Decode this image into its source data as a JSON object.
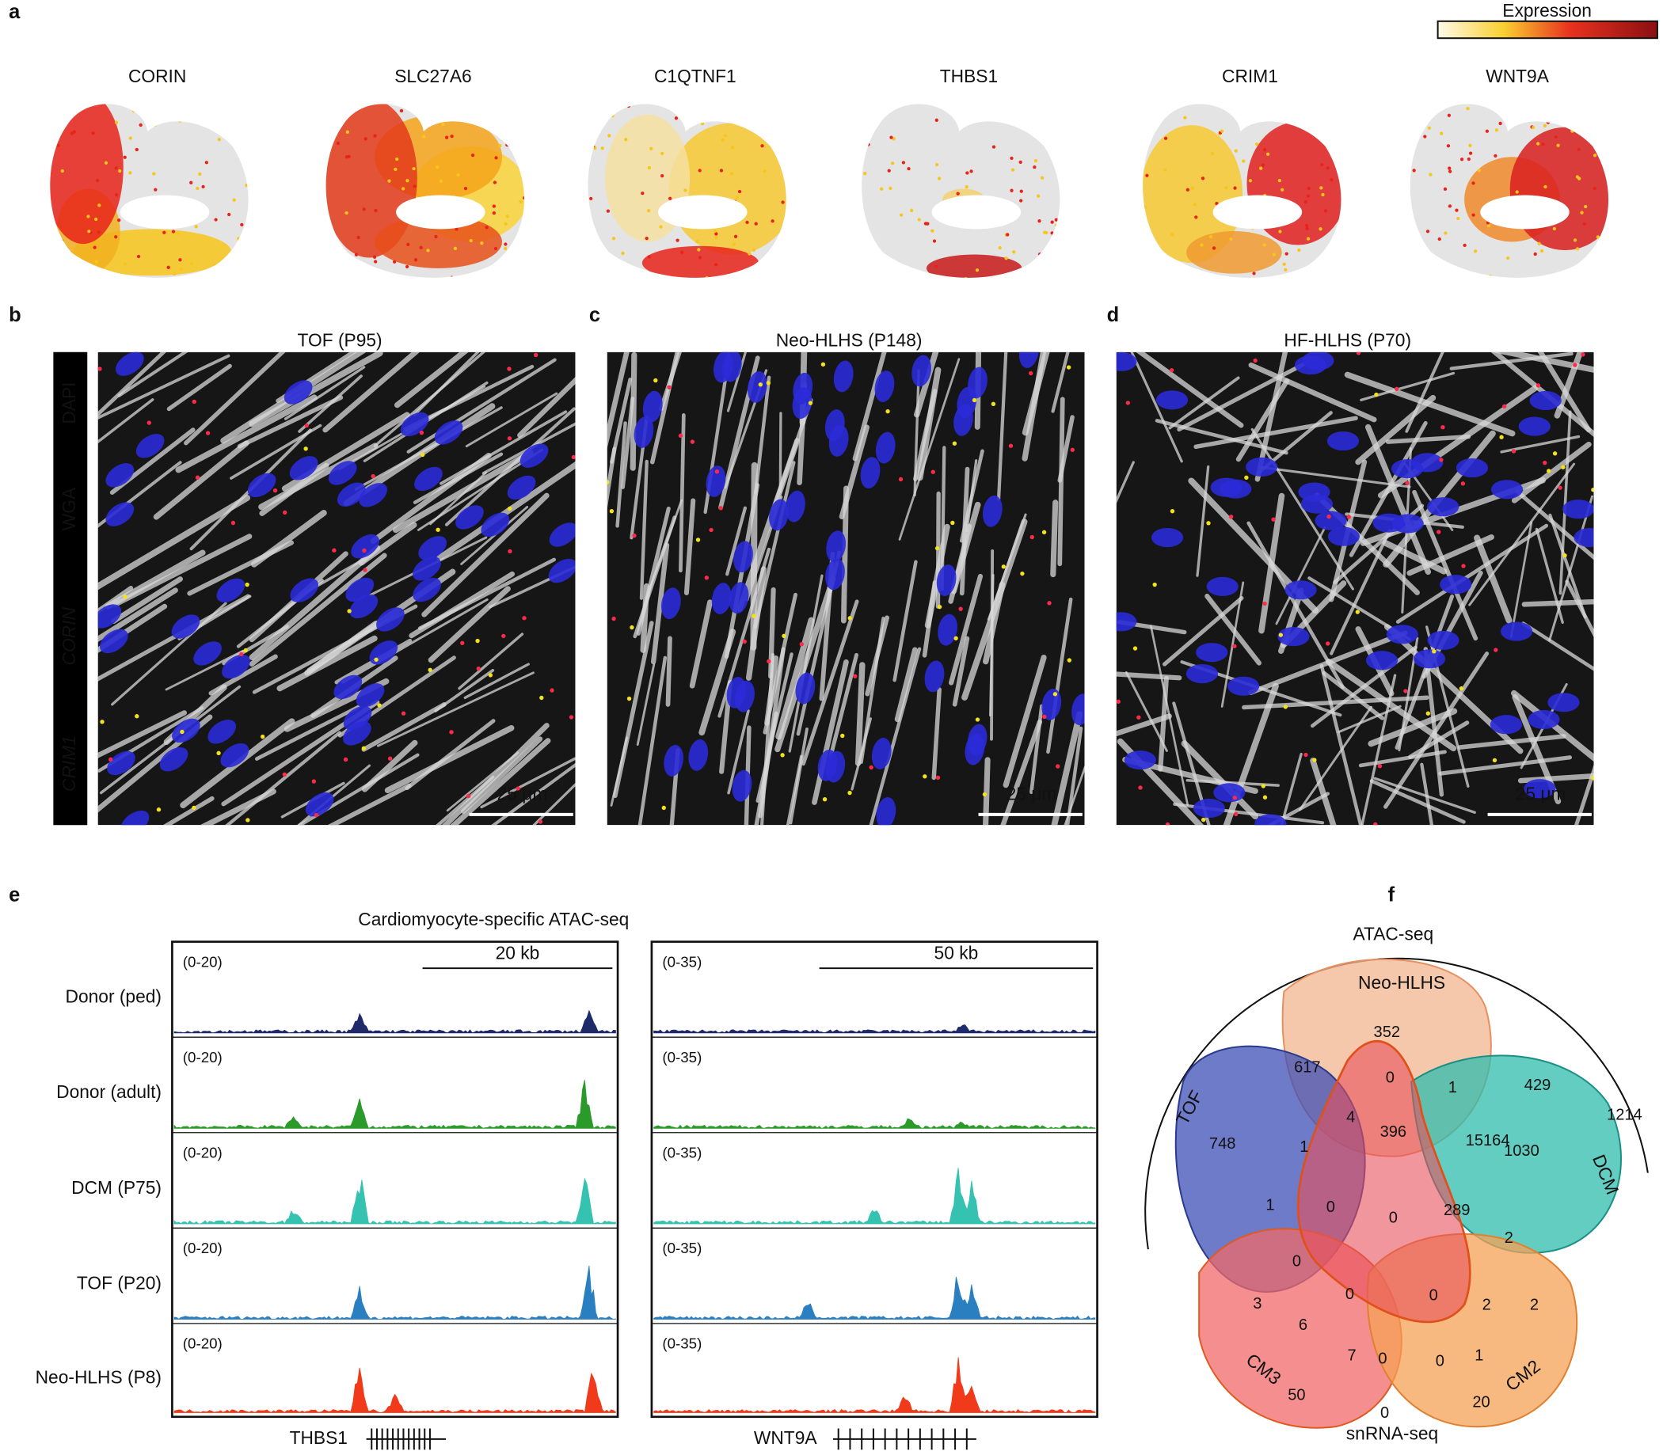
{
  "panel_a": {
    "label": "a",
    "legend_title": "Expression",
    "genes": [
      "CORIN",
      "SLC27A6",
      "C1QTNF1",
      "THBS1",
      "CRIM1",
      "WNT9A"
    ]
  },
  "stains": [
    "DAPI",
    "WGA",
    "CORIN",
    "CRIM1"
  ],
  "panel_b": {
    "label": "b",
    "title": "TOF (P95)",
    "scale_bar": "25 μm"
  },
  "panel_c": {
    "label": "c",
    "title": "Neo-HLHS (P148)",
    "scale_bar": "25 μm"
  },
  "panel_d": {
    "label": "d",
    "title": "HF-HLHS (P70)",
    "scale_bar": "25 μm"
  },
  "panel_e": {
    "label": "e",
    "title": "Cardiomyocyte-specific ATAC-seq",
    "tracks": [
      "Donor (ped)",
      "Donor (adult)",
      "DCM (P75)",
      "TOF (P20)",
      "Neo-HLHS (P8)"
    ],
    "left": {
      "range": "(0-20)",
      "scale_bar": "20 kb",
      "gene": "THBS1"
    },
    "right": {
      "range": "(0-35)",
      "scale_bar": "50 kb",
      "gene": "WNT9A"
    }
  },
  "panel_f": {
    "label": "f",
    "top_label": "ATAC-seq",
    "bottom_label": "snRNA-seq",
    "sets": [
      "Neo-HLHS",
      "TOF",
      "DCM",
      "CM3",
      "CM2"
    ],
    "counts": [
      352,
      0,
      1,
      429,
      1214,
      617,
      4,
      396,
      15164,
      1030,
      748,
      1,
      1,
      0,
      0,
      289,
      2,
      0,
      0,
      0,
      2,
      2,
      3,
      6,
      7,
      0,
      0,
      1,
      50,
      0,
      20
    ]
  }
}
